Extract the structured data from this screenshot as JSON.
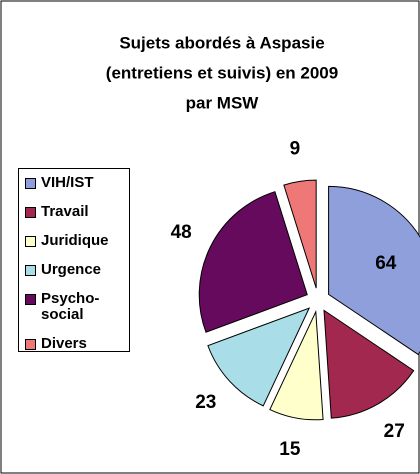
{
  "chart_data": {
    "type": "pie",
    "title": [
      "Sujets abordés à Aspasie",
      "(entretiens et suivis) en 2009",
      "par MSW"
    ],
    "categories": [
      "VIH/IST",
      "Travail",
      "Juridique",
      "Urgence",
      "Psycho-social",
      "Divers"
    ],
    "values": [
      64,
      27,
      15,
      23,
      48,
      9
    ],
    "colors": [
      "#8f9fdc",
      "#a3284f",
      "#ffffcc",
      "#a9dde8",
      "#660a5e",
      "#ee7777"
    ],
    "legend": "left"
  }
}
